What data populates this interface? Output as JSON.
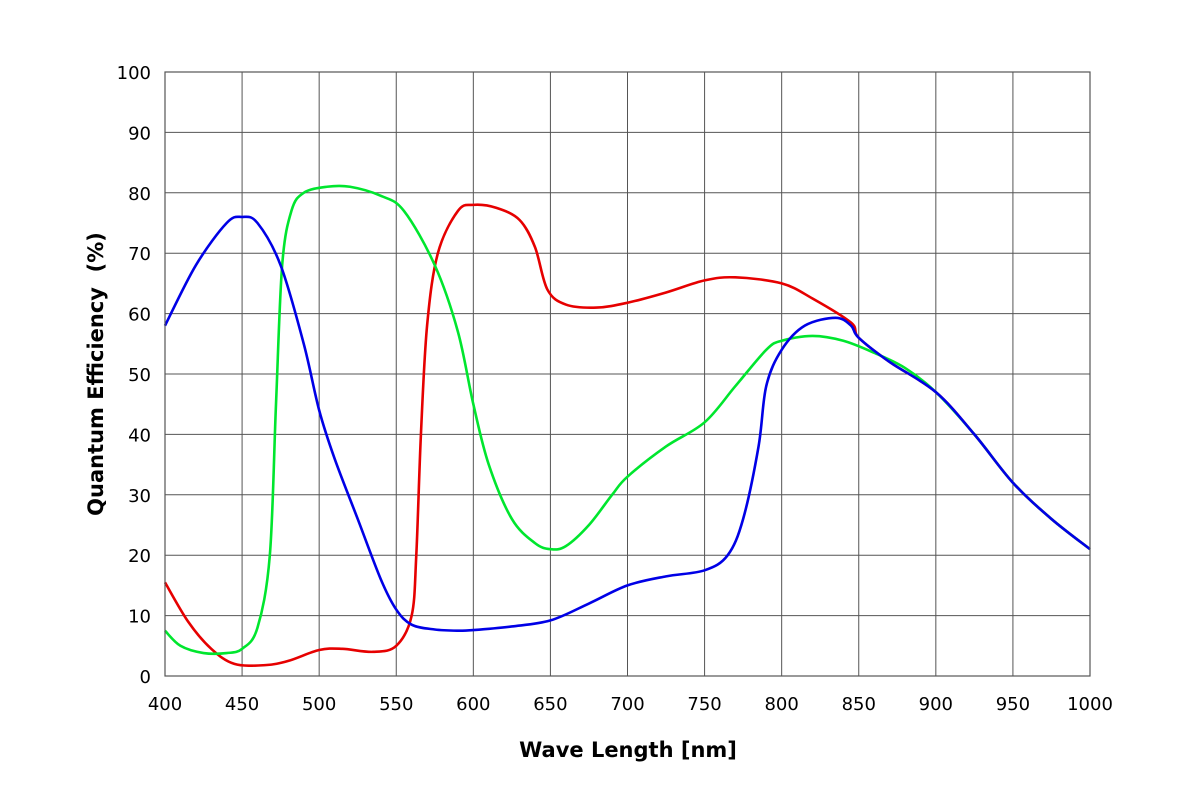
{
  "chart_data": {
    "type": "line",
    "title": "",
    "xlabel": "Wave Length [nm]",
    "ylabel": "Quantum Efficiency  (%)",
    "xlim": [
      400,
      1000
    ],
    "ylim": [
      0,
      100
    ],
    "grid": true,
    "xticks": [
      "400",
      "450",
      "500",
      "550",
      "600",
      "650",
      "700",
      "750",
      "800",
      "850",
      "900",
      "950",
      "1000"
    ],
    "yticks": [
      "0",
      "10",
      "20",
      "30",
      "40",
      "50",
      "60",
      "70",
      "80",
      "90",
      "100"
    ],
    "series": [
      {
        "name": "Red",
        "color": "#e60000",
        "x": [
          400,
          415,
          430,
          445,
          465,
          480,
          500,
          515,
          535,
          550,
          560,
          563,
          566,
          570,
          577,
          590,
          600,
          615,
          630,
          640,
          648,
          660,
          680,
          700,
          725,
          750,
          770,
          800,
          820,
          845,
          850,
          870,
          900,
          925,
          950,
          975,
          1000
        ],
        "y": [
          15.5,
          9,
          4.5,
          2,
          1.8,
          2.5,
          4.3,
          4.5,
          4,
          5,
          10,
          20,
          40,
          58,
          70,
          77,
          78,
          77.5,
          75.5,
          71,
          64,
          61.5,
          61,
          61.8,
          63.5,
          65.5,
          66,
          65,
          62.5,
          58.5,
          56,
          52,
          47,
          40,
          32,
          26,
          21
        ]
      },
      {
        "name": "Green",
        "color": "#00e62e",
        "x": [
          400,
          410,
          425,
          440,
          450,
          460,
          468,
          472,
          476,
          482,
          490,
          505,
          520,
          540,
          555,
          575,
          590,
          600,
          610,
          625,
          640,
          650,
          660,
          675,
          690,
          700,
          725,
          750,
          770,
          790,
          800,
          820,
          840,
          860,
          880,
          900,
          925,
          950,
          975,
          1000
        ],
        "y": [
          7.5,
          5,
          3.8,
          3.8,
          4.5,
          8,
          20,
          45,
          68,
          77,
          80,
          81,
          81,
          79.5,
          77,
          68,
          57,
          45,
          35,
          26,
          22,
          21,
          21.5,
          25,
          30,
          33,
          38,
          42,
          48,
          54,
          55.5,
          56.3,
          55.5,
          53.5,
          51,
          47,
          40,
          32,
          26,
          21
        ]
      },
      {
        "name": "Blue",
        "color": "#0000e6",
        "x": [
          400,
          420,
          440,
          450,
          460,
          475,
          490,
          500,
          510,
          525,
          540,
          550,
          560,
          575,
          590,
          600,
          625,
          650,
          675,
          700,
          725,
          750,
          765,
          775,
          785,
          790,
          800,
          815,
          835,
          845,
          850,
          870,
          900,
          925,
          950,
          975,
          1000
        ],
        "y": [
          58,
          68,
          75,
          76,
          75,
          68,
          55,
          44,
          36,
          26,
          16,
          11,
          8.5,
          7.7,
          7.5,
          7.6,
          8.2,
          9.2,
          12,
          15,
          16.5,
          17.5,
          20,
          26,
          38,
          48,
          54,
          58,
          59.3,
          58,
          56,
          52,
          47,
          40,
          32,
          26,
          21
        ]
      }
    ]
  }
}
